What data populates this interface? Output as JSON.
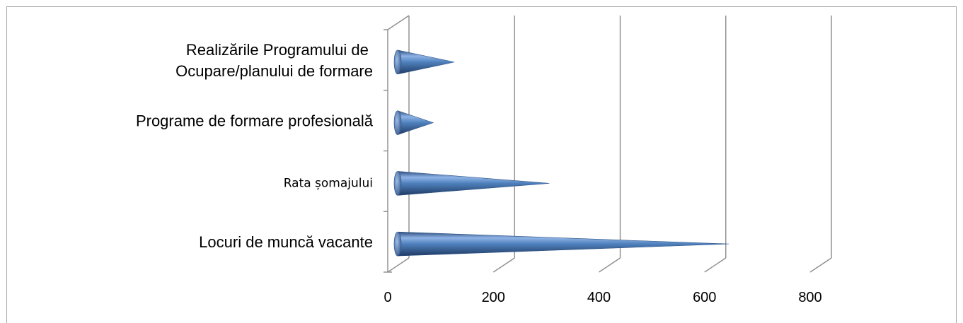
{
  "chart_data": {
    "type": "bar",
    "orientation": "horizontal",
    "bar_shape": "cone",
    "style": "3d",
    "categories": [
      "Locuri de muncă vacante",
      "Rata șomajului",
      "Programe de formare profesională",
      "Realizările Programului de Ocupare/planului de formare"
    ],
    "category_label_lines": [
      [
        "Locuri de muncă vacante"
      ],
      [
        "Rata șomajului"
      ],
      [
        "Programe de formare profesională"
      ],
      [
        "Realizările Programului de ",
        "Ocupare/planului de formare"
      ]
    ],
    "values": [
      630,
      290,
      70,
      110
    ],
    "xlim": [
      0,
      800
    ],
    "x_ticks": [
      "0",
      "200",
      "400",
      "600",
      "800"
    ],
    "grid": true,
    "legend": "none",
    "bar_color": "#4f81bd",
    "grid_color": "#8c8c8c"
  }
}
